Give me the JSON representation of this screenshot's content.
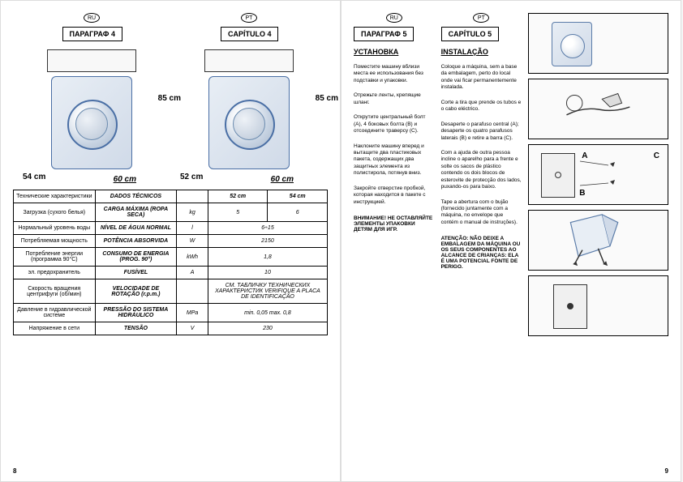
{
  "lang_badges": {
    "ru": "RU",
    "pt": "PT"
  },
  "left_page": {
    "chapter_ru": "ПАРАГРАФ 4",
    "chapter_pt": "CAPÍTULO 4",
    "dims": {
      "height": "85 cm",
      "width_a": "54 cm",
      "width_b": "52 cm",
      "depth": "60 cm"
    },
    "table": {
      "header_ru": "Технические характеристики",
      "header_pt": "DADOS TÉCNICOS",
      "col_52": "52 cm",
      "col_54": "54 cm",
      "rows": [
        {
          "ru": "Загрузка (сухого белья)",
          "pt": "CARGA MÁXIMA (ROPA SECA)",
          "unit": "kg",
          "v1": "5",
          "v2": "6"
        },
        {
          "ru": "Нормальный уровень воды",
          "pt": "NÍVEL DE ÁGUA NORMAL",
          "unit": "l",
          "v1": "6÷15",
          "v2": ""
        },
        {
          "ru": "Потребляемая мощность",
          "pt": "POTÊNCIA ABSORVIDA",
          "unit": "W",
          "v1": "2150",
          "v2": ""
        },
        {
          "ru": "Потребление энергии (программа 90°C)",
          "pt": "CONSUMO DE ENERGIA (PROG. 90°)",
          "unit": "kWh",
          "v1": "1,8",
          "v2": ""
        },
        {
          "ru": "эл. предохранитель",
          "pt": "FUSÍVEL",
          "unit": "A",
          "v1": "10",
          "v2": ""
        },
        {
          "ru": "Скорость вращения центрифуги (об/мин)",
          "pt": "VELOCIDADE DE ROTAÇÃO (r.p.m.)",
          "unit": "",
          "v1": "СМ. ТАБЛИЧКУ ТЕХНИЧЕСКИХ ХАРАКТЕРИСТИК VERIFIQUE A PLACA DE IDENTIFICAÇÃO",
          "v2": ""
        },
        {
          "ru": "Давление в гидравлической системе",
          "pt": "PRESSÃO DO SISTEMA HIDRÁULICO",
          "unit": "MPa",
          "v1": "min. 0,05 max. 0,8",
          "v2": ""
        },
        {
          "ru": "Напряжение в сети",
          "pt": "TENSÃO",
          "unit": "V",
          "v1": "230",
          "v2": ""
        }
      ]
    },
    "page_num": "8"
  },
  "right_page": {
    "chapter_ru": "ПАРАГРАФ 5",
    "chapter_pt": "CAPÍTULO 5",
    "title_ru": "УСТАНОВКА",
    "title_pt": "INSTALAÇÃO",
    "paras_ru": [
      "Поместите машину вблизи места ее использования без подставки и упаковки.",
      "Отрежьте ленты, крепящие шланг.",
      "Открутите центральный болт (A), 4 боковых болта (B) и отсоедините траверсу (C).",
      "Наклоните машину вперед и вытащите два пластиковых пакета, содержащих два защитных элемента из полистирола, потянув вниз.",
      "Закройте отверстие пробкой, которая находится в пакете с инструкцией."
    ],
    "paras_pt": [
      "Coloque a máquina, sem a base da embalagem, perto do local onde vai ficar permanentemente instalada.",
      "Corte a tira que prende os tubos e o cabo eléctrico.",
      "Desaperte o parafuso central (A); desaperte os quatro parafusos laterais (B) e retire a barra (C).",
      "Com a ajuda de outra pessoa incline o aparelho para a frente e solte os sacos de plástico contendo os dois blocos de esterovite de protecção dos lados, puxando-os para baixo.",
      "Tape a abertura com o bujão (fornecido juntamente com a máquina, no envelope que contém o manual de instruções)."
    ],
    "warning_ru": "ВНИМАНИЕ! НЕ ОСТАВЛЯЙТЕ ЭЛЕМЕНТЫ УПАКОВКИ ДЕТЯМ ДЛЯ ИГР.",
    "warning_pt": "ATENÇÃO: NÃO DEIXE A EMBALAGEM DA MÁQUINA OU OS SEUS COMPONENTES AO ALCANCE DE CRIANÇAS: ELA É UMA POTENCIAL FONTE DE PERIGO.",
    "illus_labels": {
      "a": "A",
      "b": "B",
      "c": "C"
    },
    "page_num": "9"
  }
}
